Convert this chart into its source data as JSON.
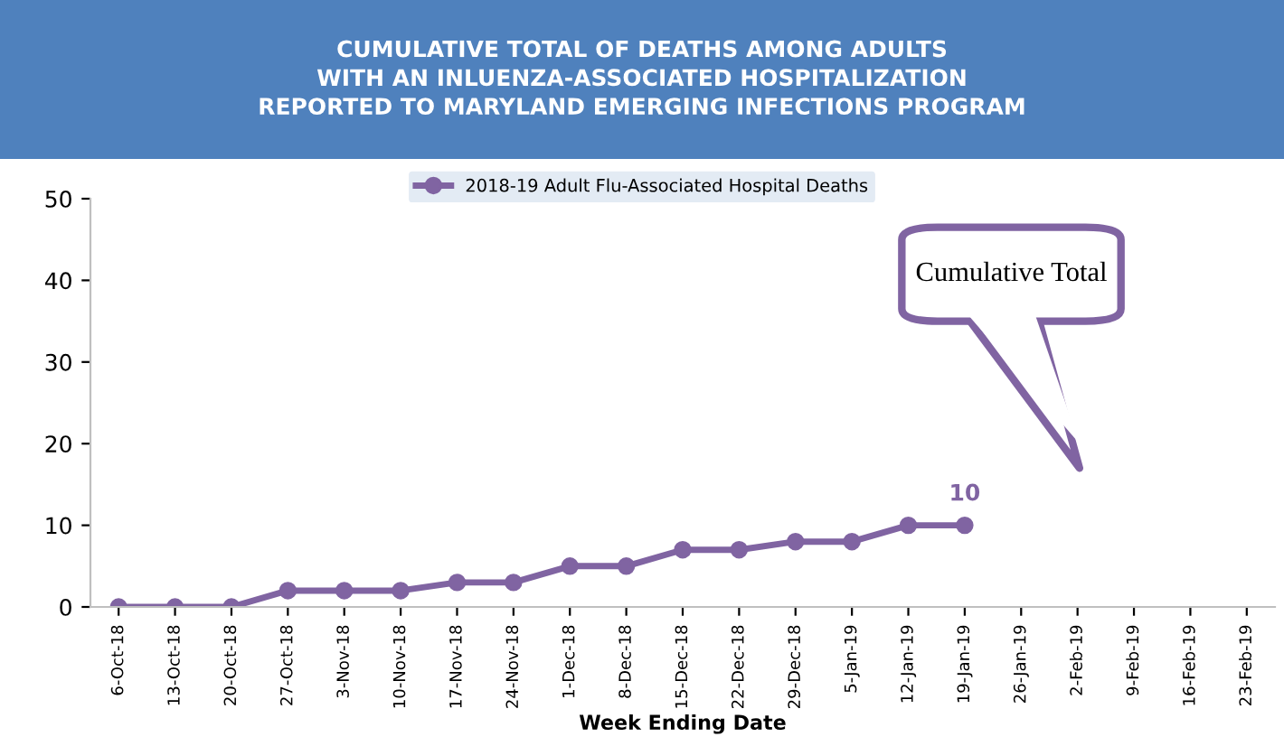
{
  "chart_data": {
    "type": "line",
    "title": "CUMULATIVE TOTAL OF DEATHS AMONG ADULTS\nWITH AN INLUENZA-ASSOCIATED HOSPITALIZATION\nREPORTED TO MARYLAND EMERGING INFECTIONS PROGRAM",
    "xlabel": "Week Ending Date",
    "categories": [
      "6-Oct-18",
      "13-Oct-18",
      "20-Oct-18",
      "27-Oct-18",
      "3-Nov-18",
      "10-Nov-18",
      "17-Nov-18",
      "24-Nov-18",
      "1-Dec-18",
      "8-Dec-18",
      "15-Dec-18",
      "22-Dec-18",
      "29-Dec-18",
      "5-Jan-19",
      "12-Jan-19",
      "19-Jan-19",
      "26-Jan-19",
      "2-Feb-19",
      "9-Feb-19",
      "16-Feb-19",
      "23-Feb-19"
    ],
    "series": [
      {
        "name": "2018-19 Adult Flu-Associated Hospital Deaths",
        "color": "#8064a2",
        "values": [
          0,
          0,
          0,
          2,
          2,
          2,
          3,
          3,
          5,
          5,
          7,
          7,
          8,
          8,
          10,
          10,
          null,
          null,
          null,
          null,
          null
        ],
        "value_labels": [
          null,
          null,
          null,
          null,
          null,
          null,
          null,
          null,
          null,
          null,
          null,
          null,
          null,
          null,
          null,
          "10",
          null,
          null,
          null,
          null,
          null
        ]
      }
    ],
    "ylim": [
      0,
      50
    ],
    "yticks": [
      0,
      10,
      20,
      30,
      40,
      50
    ],
    "annotations": [
      "Cumulative Total"
    ],
    "legend": "top",
    "marker": "circle",
    "line_style": "solid",
    "grid": false
  }
}
